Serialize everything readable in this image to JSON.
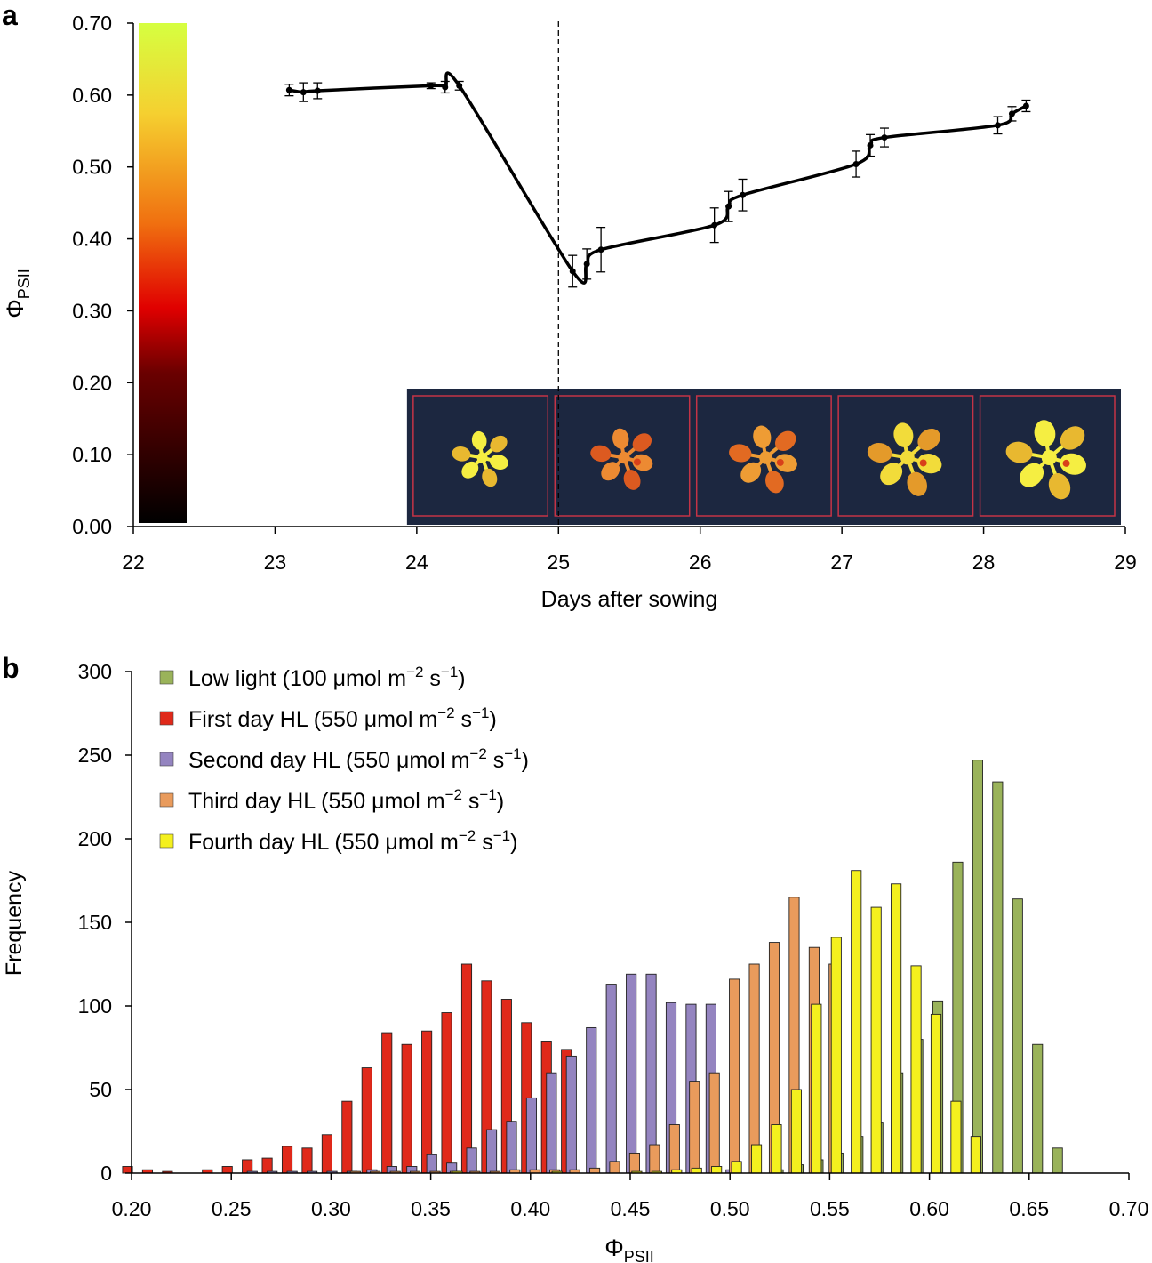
{
  "colors": {
    "low_light": "#9ab35a",
    "first_day": "#e0291a",
    "second_day": "#9484c0",
    "third_day": "#e99b5c",
    "fourth_day": "#f4f01e",
    "line": "#000000",
    "image_bg": "#1c2740",
    "image_frame": "#c43346"
  },
  "chart_data": [
    {
      "panel": "a",
      "type": "line",
      "xlabel": "Days after sowing",
      "ylabel": "ΦPSII",
      "ylabel_main": "Φ",
      "ylabel_sub": "PSII",
      "xlim": [
        22,
        29
      ],
      "ylim": [
        0,
        0.7
      ],
      "xticks": [
        "22",
        "23",
        "24",
        "25",
        "26",
        "27",
        "28",
        "29"
      ],
      "yticks": [
        "0.00",
        "0.10",
        "0.20",
        "0.30",
        "0.40",
        "0.50",
        "0.60",
        "0.70"
      ],
      "colorbar": {
        "range": [
          0,
          0.7
        ],
        "colormap": "black-red-orange-yellow-green"
      },
      "event_line_x": 25.0,
      "points": [
        {
          "x": 23.1,
          "y": 0.607,
          "err": 0.008
        },
        {
          "x": 23.2,
          "y": 0.604,
          "err": 0.013
        },
        {
          "x": 23.3,
          "y": 0.606,
          "err": 0.011
        },
        {
          "x": 24.1,
          "y": 0.613,
          "err": 0.004
        },
        {
          "x": 24.2,
          "y": 0.611,
          "err": 0.008
        },
        {
          "x": 24.3,
          "y": 0.613,
          "err": 0.006
        },
        {
          "x": 25.1,
          "y": 0.355,
          "err": 0.022
        },
        {
          "x": 25.2,
          "y": 0.365,
          "err": 0.021
        },
        {
          "x": 25.3,
          "y": 0.385,
          "err": 0.031
        },
        {
          "x": 26.1,
          "y": 0.419,
          "err": 0.024
        },
        {
          "x": 26.2,
          "y": 0.445,
          "err": 0.021
        },
        {
          "x": 26.3,
          "y": 0.461,
          "err": 0.022
        },
        {
          "x": 27.1,
          "y": 0.504,
          "err": 0.018
        },
        {
          "x": 27.2,
          "y": 0.53,
          "err": 0.015
        },
        {
          "x": 27.3,
          "y": 0.541,
          "err": 0.013
        },
        {
          "x": 28.1,
          "y": 0.558,
          "err": 0.012
        },
        {
          "x": 28.2,
          "y": 0.574,
          "err": 0.01
        },
        {
          "x": 28.3,
          "y": 0.585,
          "err": 0.008
        }
      ],
      "images": [
        {
          "day": 24,
          "mean": 0.61
        },
        {
          "day": 25,
          "mean": 0.36
        },
        {
          "day": 26,
          "mean": 0.42
        },
        {
          "day": 27,
          "mean": 0.5
        },
        {
          "day": 28,
          "mean": 0.56
        }
      ]
    },
    {
      "panel": "b",
      "type": "bar",
      "xlabel": "ΦPSII",
      "xlabel_main": "Φ",
      "xlabel_sub": "PSII",
      "ylabel": "Frequency",
      "xlim": [
        0.2,
        0.7
      ],
      "ylim": [
        0,
        300
      ],
      "bin_width": 0.01,
      "xticks": [
        "0.20",
        "0.25",
        "0.30",
        "0.35",
        "0.40",
        "0.45",
        "0.50",
        "0.55",
        "0.60",
        "0.65",
        "0.70"
      ],
      "yticks": [
        "0",
        "50",
        "100",
        "150",
        "200",
        "250",
        "300"
      ],
      "legend_position": "top-left",
      "series": [
        {
          "name": "Low light (100 μmol m−2 s−1)",
          "label_main": "Low light (100 μmol m",
          "label_exp1": "−2",
          "label_mid": " s",
          "label_exp2": "−1",
          "label_end": ")",
          "color_key": "low_light",
          "x": [
            0.52,
            0.53,
            0.54,
            0.55,
            0.56,
            0.57,
            0.58,
            0.59,
            0.6,
            0.61,
            0.62,
            0.63,
            0.64,
            0.65,
            0.66
          ],
          "values": [
            2,
            5,
            8,
            12,
            22,
            30,
            60,
            80,
            103,
            186,
            247,
            234,
            164,
            77,
            15
          ]
        },
        {
          "name": "First day HL (550 μmol m−2 s−1)",
          "label_main": "First day HL (550 μmol m",
          "label_exp1": "−2",
          "label_mid": " s",
          "label_exp2": "−1",
          "label_end": ")",
          "color_key": "first_day",
          "x": [
            0.2,
            0.21,
            0.22,
            0.24,
            0.25,
            0.26,
            0.27,
            0.28,
            0.29,
            0.3,
            0.31,
            0.32,
            0.33,
            0.34,
            0.35,
            0.36,
            0.37,
            0.38,
            0.39,
            0.4,
            0.41,
            0.42
          ],
          "values": [
            4,
            2,
            1,
            2,
            4,
            8,
            9,
            16,
            15,
            23,
            43,
            63,
            84,
            77,
            85,
            96,
            125,
            115,
            104,
            90,
            79,
            74
          ]
        },
        {
          "name": "Second day HL (550 μmol m−2 s−1)",
          "label_main": "Second day HL (550 μmol m",
          "label_exp1": "−2",
          "label_mid": " s",
          "label_exp2": "−1",
          "label_end": ")",
          "color_key": "second_day",
          "x": [
            0.26,
            0.27,
            0.28,
            0.29,
            0.3,
            0.31,
            0.32,
            0.33,
            0.34,
            0.35,
            0.36,
            0.37,
            0.38,
            0.39,
            0.4,
            0.41,
            0.42,
            0.43,
            0.44,
            0.45,
            0.46,
            0.47,
            0.48,
            0.49,
            0.5
          ],
          "values": [
            1,
            1,
            1,
            1,
            1,
            1,
            2,
            4,
            4,
            11,
            6,
            15,
            26,
            31,
            45,
            60,
            70,
            87,
            113,
            119,
            119,
            102,
            101,
            101,
            2
          ]
        },
        {
          "name": "Third day HL (550 μmol m−2 s−1)",
          "label_main": "Third day HL (550 μmol m",
          "label_exp1": "−2",
          "label_mid": " s",
          "label_exp2": "−1",
          "label_end": ")",
          "color_key": "third_day",
          "x": [
            0.31,
            0.32,
            0.33,
            0.34,
            0.35,
            0.36,
            0.37,
            0.38,
            0.39,
            0.4,
            0.41,
            0.42,
            0.43,
            0.44,
            0.45,
            0.46,
            0.47,
            0.48,
            0.49,
            0.5,
            0.51,
            0.52,
            0.53,
            0.54,
            0.55
          ],
          "values": [
            1,
            1,
            1,
            1,
            1,
            1,
            1,
            1,
            2,
            2,
            2,
            2,
            3,
            7,
            12,
            17,
            29,
            55,
            60,
            116,
            125,
            138,
            165,
            135,
            125
          ]
        },
        {
          "name": "Fourth day HL (550 μmol m−2 s−1)",
          "label_main": "Fourth day HL (550 μmol m",
          "label_exp1": "−2",
          "label_mid": " s",
          "label_exp2": "−1",
          "label_end": ")",
          "color_key": "fourth_day",
          "x": [
            0.36,
            0.41,
            0.45,
            0.46,
            0.47,
            0.48,
            0.49,
            0.5,
            0.51,
            0.52,
            0.53,
            0.54,
            0.55,
            0.56,
            0.57,
            0.58,
            0.59,
            0.6,
            0.61,
            0.62
          ],
          "values": [
            1,
            1,
            1,
            1,
            2,
            3,
            4,
            7,
            17,
            29,
            50,
            101,
            141,
            181,
            159,
            173,
            124,
            95,
            43,
            22
          ]
        }
      ]
    }
  ]
}
